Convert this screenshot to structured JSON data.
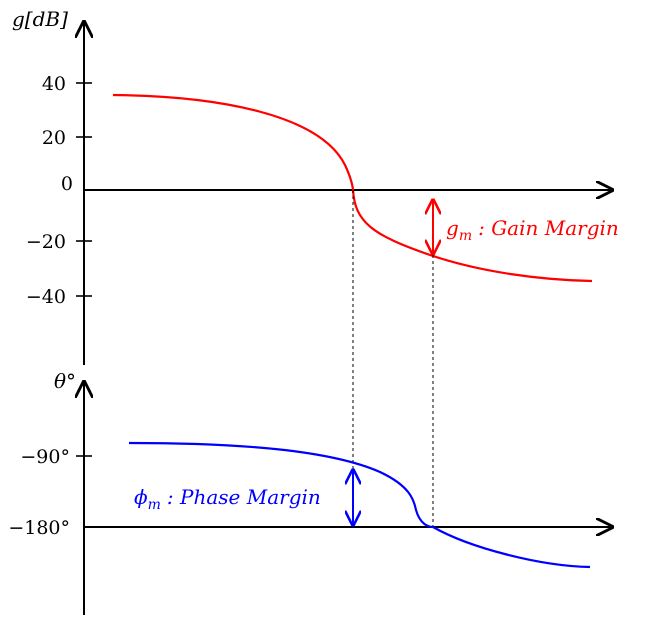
{
  "gain_plot": {
    "ylabel": "g[dB]",
    "ticks": [
      "40",
      "20",
      "0",
      "−20",
      "−40"
    ],
    "curve_color": "#ff0000",
    "annotation": {
      "symbol": "g",
      "subscript": "m",
      "text": ": Gain Margin"
    }
  },
  "phase_plot": {
    "ylabel": "θ°",
    "ticks": [
      "−90°",
      "−180°"
    ],
    "curve_color": "#0000ff",
    "annotation": {
      "symbol": "ϕ",
      "subscript": "m",
      "text": ": Phase Margin"
    }
  }
}
